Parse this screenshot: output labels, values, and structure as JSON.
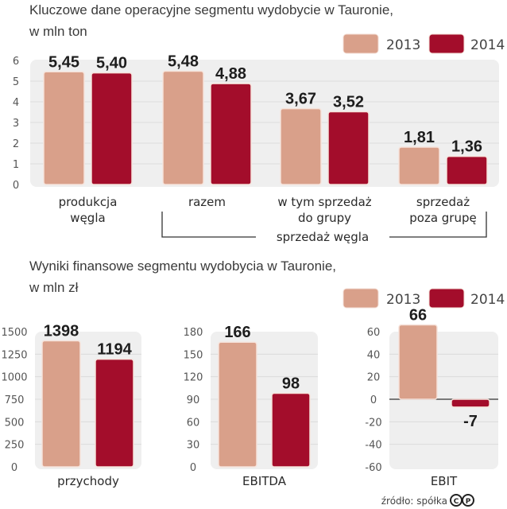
{
  "colors": {
    "y2013": "#d9a08a",
    "y2014": "#a30d2b",
    "panel": "#efefef",
    "grid": "#dcdcdc",
    "axis": "#333333"
  },
  "legend": [
    "2013",
    "2014"
  ],
  "source": "źródło: spółka",
  "logo": "CP",
  "chart_data": [
    {
      "id": "operational",
      "type": "bar",
      "title": "Kluczowe dane operacyjne segmentu wydobycie w Tauronie,",
      "subtitle": "w mln ton",
      "categories": [
        [
          "produkcja",
          "węgla"
        ],
        [
          "razem"
        ],
        [
          "w tym sprzedaż",
          "do grupy"
        ],
        [
          "sprzedaż",
          "poza grupę"
        ]
      ],
      "series": [
        {
          "name": "2013",
          "values": [
            5.45,
            5.48,
            3.67,
            1.81
          ],
          "labels": [
            "5,45",
            "5,48",
            "3,67",
            "1,81"
          ]
        },
        {
          "name": "2014",
          "values": [
            5.4,
            4.88,
            3.52,
            1.36
          ],
          "labels": [
            "5,40",
            "4,88",
            "3,52",
            "1,36"
          ]
        }
      ],
      "group_label": "sprzedaż węgla",
      "ylim": [
        0,
        6
      ],
      "yticks": [
        "0",
        "1",
        "2",
        "3",
        "4",
        "5",
        "6"
      ],
      "grid": true,
      "legend_position": "top-right",
      "xlabel": "",
      "ylabel": ""
    },
    {
      "id": "financial",
      "title": "Wyniki finansowe segmentu wydobycia w Tauronie,",
      "subtitle": "w mln zł",
      "legend_position": "top-right",
      "panels": [
        {
          "type": "bar",
          "category": "przychody",
          "series": [
            {
              "name": "2013",
              "value": 1398,
              "label": "1398"
            },
            {
              "name": "2014",
              "value": 1194,
              "label": "1194"
            }
          ],
          "ylim": [
            0,
            1500
          ],
          "yticks": [
            "0",
            "250",
            "500",
            "750",
            "1000",
            "1250",
            "1500"
          ]
        },
        {
          "type": "bar",
          "category": "EBITDA",
          "series": [
            {
              "name": "2013",
              "value": 166,
              "label": "166"
            },
            {
              "name": "2014",
              "value": 98,
              "label": "98"
            }
          ],
          "ylim": [
            0,
            180
          ],
          "yticks": [
            "0",
            "30",
            "60",
            "90",
            "120",
            "150",
            "180"
          ]
        },
        {
          "type": "bar",
          "category": "EBIT",
          "series": [
            {
              "name": "2013",
              "value": 66,
              "label": "66"
            },
            {
              "name": "2014",
              "value": -7,
              "label": "-7"
            }
          ],
          "ylim": [
            -60,
            60
          ],
          "yticks": [
            "-60",
            "-40",
            "-20",
            "0",
            "20",
            "40",
            "60"
          ]
        }
      ]
    }
  ]
}
